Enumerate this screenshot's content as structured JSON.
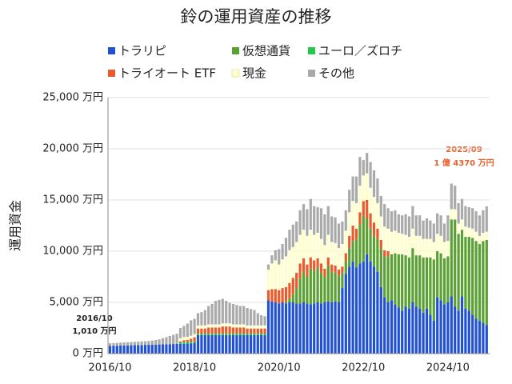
{
  "chart_data": {
    "type": "stacked_bar",
    "title": "鈴の運用資産の推移",
    "y_label": "運用資金",
    "categories": [
      "2016/10",
      null,
      null,
      null,
      null,
      null,
      null,
      null,
      null,
      null,
      null,
      null,
      null,
      null,
      null,
      null,
      null,
      null,
      null,
      null,
      null,
      null,
      null,
      null,
      "2018/10",
      null,
      null,
      null,
      null,
      null,
      null,
      null,
      null,
      null,
      null,
      null,
      null,
      null,
      null,
      null,
      null,
      null,
      null,
      null,
      null,
      null,
      null,
      null,
      "2020/10",
      null,
      null,
      null,
      null,
      null,
      null,
      null,
      null,
      null,
      null,
      null,
      null,
      null,
      null,
      null,
      null,
      null,
      null,
      null,
      null,
      null,
      null,
      null,
      "2022/10",
      null,
      null,
      null,
      null,
      null,
      null,
      null,
      null,
      null,
      null,
      null,
      null,
      null,
      null,
      null,
      null,
      null,
      null,
      null,
      null,
      null,
      null,
      null,
      "2024/10",
      null,
      null,
      null,
      null,
      null,
      null,
      null,
      null,
      null,
      null,
      null
    ],
    "series": [
      {
        "name": "トラリピ",
        "color": "#2152d6",
        "values": [
          750,
          760,
          770,
          780,
          790,
          800,
          810,
          820,
          830,
          840,
          850,
          860,
          870,
          880,
          890,
          900,
          910,
          920,
          930,
          940,
          950,
          960,
          980,
          1000,
          1050,
          1800,
          1800,
          1800,
          1800,
          1800,
          1800,
          1800,
          1800,
          1800,
          1800,
          1800,
          1800,
          1800,
          1800,
          1800,
          1800,
          1800,
          1800,
          1800,
          1800,
          5200,
          5100,
          5000,
          4900,
          5000,
          4900,
          5000,
          5000,
          4900,
          4900,
          5000,
          4900,
          4800,
          4900,
          5000,
          4900,
          5000,
          5100,
          5000,
          5100,
          5000,
          6400,
          7800,
          8500,
          9000,
          8400,
          8800,
          9000,
          9700,
          9000,
          8500,
          8000,
          6500,
          5500,
          5000,
          5200,
          4800,
          4500,
          4200,
          4600,
          4400,
          5000,
          4600,
          4400,
          4000,
          4400,
          3800,
          3200,
          5500,
          5200,
          4800,
          5000,
          5600,
          4600,
          4200,
          5600,
          4400,
          4200,
          3800,
          3400,
          3200,
          3000,
          2800
        ]
      },
      {
        "name": "仮想通貨",
        "color": "#5aa032",
        "values": [
          0,
          0,
          0,
          0,
          0,
          0,
          0,
          0,
          0,
          0,
          0,
          0,
          0,
          0,
          0,
          0,
          0,
          0,
          0,
          0,
          0,
          0,
          0,
          0,
          0,
          0,
          0,
          0,
          0,
          0,
          0,
          0,
          0,
          0,
          0,
          0,
          0,
          0,
          0,
          0,
          0,
          0,
          0,
          0,
          0,
          0,
          0,
          0,
          0,
          0,
          200,
          400,
          800,
          1500,
          2500,
          3000,
          2600,
          3500,
          3200,
          3400,
          3000,
          2500,
          3500,
          3000,
          2800,
          2600,
          1500,
          1200,
          1800,
          2000,
          2800,
          3800,
          4500,
          3500,
          3200,
          3000,
          3200,
          3800,
          4000,
          4500,
          4500,
          5000,
          5200,
          5500,
          5000,
          5000,
          5300,
          5000,
          5200,
          5400,
          5000,
          5600,
          6000,
          4500,
          4600,
          4500,
          4500,
          7500,
          8500,
          7500,
          6500,
          7000,
          7200,
          7500,
          7600,
          7500,
          8000,
          8300
        ]
      },
      {
        "name": "ユーロ／ズロチ",
        "color": "#22c94a",
        "values": [
          0,
          0,
          0,
          0,
          0,
          0,
          0,
          0,
          0,
          0,
          0,
          0,
          0,
          0,
          0,
          0,
          0,
          0,
          0,
          0,
          150,
          150,
          150,
          150,
          150,
          150,
          150,
          150,
          150,
          150,
          150,
          150,
          150,
          150,
          150,
          150,
          150,
          150,
          150,
          150,
          150,
          150,
          150,
          150,
          150,
          0,
          0,
          0,
          0,
          0,
          0,
          0,
          0,
          0,
          0,
          0,
          0,
          0,
          0,
          0,
          0,
          0,
          0,
          0,
          0,
          0,
          0,
          0,
          0,
          0,
          0,
          0,
          0,
          0,
          0,
          0,
          0,
          0,
          0,
          0,
          0,
          0,
          0,
          0,
          0,
          0,
          0,
          0,
          0,
          0,
          0,
          0,
          0,
          0,
          0,
          0,
          0,
          0,
          0,
          0,
          0,
          0,
          0,
          0,
          0,
          0,
          0,
          0
        ]
      },
      {
        "name": "トライオート ETF",
        "color": "#ec5a2a",
        "values": [
          0,
          0,
          0,
          0,
          0,
          0,
          0,
          0,
          0,
          0,
          0,
          0,
          0,
          0,
          0,
          0,
          0,
          0,
          0,
          0,
          100,
          200,
          200,
          300,
          400,
          500,
          500,
          500,
          600,
          600,
          600,
          600,
          700,
          700,
          700,
          600,
          600,
          600,
          600,
          500,
          500,
          500,
          500,
          500,
          500,
          1000,
          1200,
          1300,
          1300,
          1400,
          1400,
          1500,
          1600,
          1500,
          1400,
          1300,
          1200,
          1100,
          1000,
          900,
          900,
          800,
          800,
          700,
          700,
          600,
          600,
          800,
          1200,
          1500,
          1000,
          1200,
          1400,
          1800,
          1500,
          1300,
          1000,
          800,
          600,
          500,
          0,
          0,
          0,
          0,
          0,
          0,
          0,
          0,
          0,
          0,
          0,
          0,
          0,
          0,
          0,
          0,
          0,
          0,
          0,
          0,
          0,
          0,
          0,
          0,
          0,
          0,
          0,
          0
        ]
      },
      {
        "name": "現金",
        "color": "#ffffcc",
        "values": [
          0,
          0,
          0,
          0,
          0,
          0,
          0,
          0,
          0,
          0,
          0,
          0,
          0,
          0,
          0,
          0,
          0,
          0,
          0,
          0,
          300,
          300,
          300,
          300,
          300,
          300,
          300,
          300,
          300,
          300,
          300,
          300,
          300,
          300,
          300,
          300,
          300,
          300,
          300,
          300,
          300,
          300,
          300,
          300,
          300,
          2000,
          2500,
          2800,
          2500,
          2800,
          3000,
          3200,
          3000,
          3000,
          2800,
          2800,
          2800,
          2700,
          2500,
          2500,
          2400,
          2300,
          2200,
          2200,
          2200,
          2100,
          2200,
          2200,
          2300,
          2400,
          2500,
          2600,
          2500,
          2600,
          2500,
          2500,
          2500,
          2300,
          2300,
          2200,
          2200,
          2200,
          2100,
          2000,
          2000,
          2000,
          1900,
          1900,
          1900,
          1800,
          1800,
          1800,
          1700,
          1700,
          1700,
          1600,
          1500,
          1000,
          1000,
          1000,
          1000,
          1000,
          900,
          900,
          900,
          800,
          800,
          800
        ]
      },
      {
        "name": "その他",
        "color": "#aaaaaa",
        "values": [
          260,
          270,
          280,
          290,
          300,
          310,
          320,
          330,
          340,
          350,
          360,
          370,
          400,
          450,
          500,
          600,
          700,
          800,
          900,
          1000,
          1000,
          1100,
          1300,
          1500,
          1500,
          1200,
          1300,
          1500,
          1800,
          2000,
          2300,
          2400,
          2400,
          2200,
          2000,
          2000,
          1900,
          1800,
          1800,
          1700,
          1600,
          1500,
          1200,
          1000,
          900,
          500,
          800,
          1000,
          1500,
          1500,
          1800,
          2000,
          2200,
          2000,
          2400,
          2500,
          2600,
          3000,
          2800,
          2500,
          3000,
          3000,
          2800,
          2500,
          2500,
          2400,
          2200,
          2000,
          2200,
          2400,
          2600,
          2800,
          1500,
          2000,
          2500,
          2600,
          2400,
          2000,
          2200,
          2000,
          2000,
          2000,
          1800,
          1800,
          2000,
          2000,
          2200,
          2000,
          2000,
          1800,
          2000,
          1800,
          1800,
          2000,
          2000,
          1800,
          2500,
          2500,
          2300,
          2000,
          2000,
          2000,
          2000,
          2000,
          2000,
          2000,
          2200,
          2470
        ]
      }
    ],
    "ylim": [
      0,
      25000
    ],
    "yticks": [
      {
        "value": 0,
        "label": "0 万円"
      },
      {
        "value": 5000,
        "label": "5,000 万円"
      },
      {
        "value": 10000,
        "label": "10,000 万円"
      },
      {
        "value": 15000,
        "label": "15,000 万円"
      },
      {
        "value": 20000,
        "label": "20,000 万円"
      },
      {
        "value": 25000,
        "label": "25,000 万円"
      }
    ],
    "grid": true,
    "annotations": [
      "2016/10",
      "1,010 万円",
      "2025/09",
      "1 億 4370 万円"
    ]
  }
}
